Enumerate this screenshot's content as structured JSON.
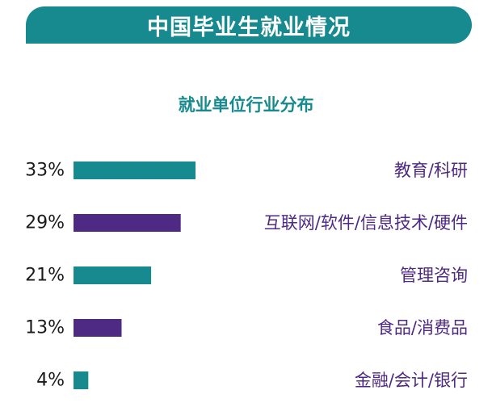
{
  "header": {
    "title": "中国毕业生就业情况"
  },
  "colors": {
    "teal": "#168a8f",
    "purple": "#4e2a84"
  },
  "chart_data": {
    "type": "bar",
    "orientation": "horizontal",
    "title": "就业单位行业分布",
    "categories": [
      "教育/科研",
      "互联网/软件/信息技术/硬件",
      "管理咨询",
      "食品/消费品",
      "金融/会计/银行"
    ],
    "values": [
      33,
      29,
      21,
      13,
      4
    ],
    "value_labels": [
      "33%",
      "29%",
      "21%",
      "13%",
      "4%"
    ],
    "unit": "%",
    "bar_colors": [
      "#168a8f",
      "#4e2a84",
      "#168a8f",
      "#4e2a84",
      "#168a8f"
    ],
    "grid": false,
    "legend": "none"
  }
}
